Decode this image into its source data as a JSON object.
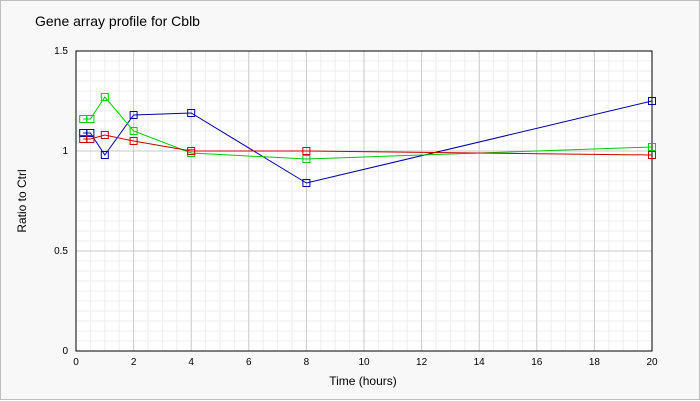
{
  "chart_data": {
    "type": "line",
    "title": "Gene array profile for Cblb",
    "xlabel": "Time (hours)",
    "ylabel": "Ratio to Ctrl",
    "xlim": [
      0,
      20
    ],
    "ylim": [
      0,
      1.5
    ],
    "x_ticks": [
      0,
      2,
      4,
      6,
      8,
      10,
      12,
      14,
      16,
      18,
      20
    ],
    "y_ticks": [
      0,
      0.5,
      1,
      1.5
    ],
    "grid": true,
    "legend": "none",
    "series": [
      {
        "color": "#0000aa",
        "points": [
          {
            "x": 0.25,
            "y": 1.09
          },
          {
            "x": 0.5,
            "y": 1.09
          },
          {
            "x": 1,
            "y": 0.98
          },
          {
            "x": 2,
            "y": 1.18
          },
          {
            "x": 4,
            "y": 1.19
          },
          {
            "x": 8,
            "y": 0.84
          },
          {
            "x": 20,
            "y": 1.25
          }
        ]
      },
      {
        "color": "#00cc00",
        "points": [
          {
            "x": 0.25,
            "y": 1.16
          },
          {
            "x": 0.5,
            "y": 1.16
          },
          {
            "x": 1,
            "y": 1.27
          },
          {
            "x": 2,
            "y": 1.1
          },
          {
            "x": 4,
            "y": 0.99
          },
          {
            "x": 8,
            "y": 0.96
          },
          {
            "x": 20,
            "y": 1.02
          }
        ]
      },
      {
        "color": "#cc0000",
        "points": [
          {
            "x": 0.25,
            "y": 1.06
          },
          {
            "x": 0.5,
            "y": 1.06
          },
          {
            "x": 1,
            "y": 1.08
          },
          {
            "x": 2,
            "y": 1.05
          },
          {
            "x": 4,
            "y": 1.0
          },
          {
            "x": 8,
            "y": 1.0
          },
          {
            "x": 20,
            "y": 0.98
          }
        ]
      }
    ]
  }
}
